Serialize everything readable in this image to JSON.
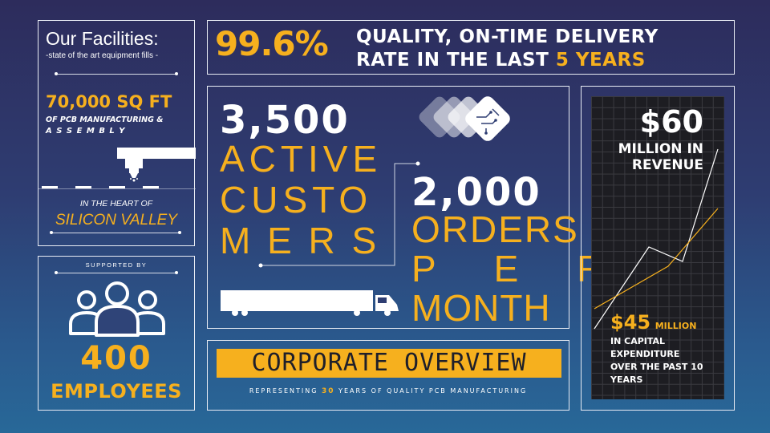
{
  "facilities": {
    "title": "Our Facilities:",
    "subtitle": "-state of the art equipment fills -",
    "area": "70,000 SQ FT",
    "area_desc_1": "OF PCB MANUFACTURING &",
    "area_desc_2": "A S S E M B L Y",
    "location_intro": "IN THE HEART OF",
    "location": "SILICON VALLEY"
  },
  "quality": {
    "percent": "99.6%",
    "line1": "QUALITY, ON-TIME DELIVERY",
    "line2_prefix": "RATE IN THE LAST",
    "line2_highlight": "5 YEARS"
  },
  "customers": {
    "number": "3,500",
    "word1": "ACTIVE",
    "word2": "CUSTO",
    "word3": "M E R S"
  },
  "orders": {
    "number": "2,000",
    "word1": "ORDERS",
    "word2": "P E R",
    "word3": "MONTH"
  },
  "employees": {
    "supported_by": "SUPPORTED BY",
    "count": "400",
    "label": "EMPLOYEES"
  },
  "overview": {
    "title": "CORPORATE OVERVIEW",
    "subtitle_prefix": "REPRESENTING",
    "subtitle_number": "30",
    "subtitle_suffix": "YEARS OF QUALITY PCB MANUFACTURING"
  },
  "revenue": {
    "amount": "$60",
    "line1": "MILLION IN",
    "line2": "REVENUE",
    "capex_amount": "$45",
    "capex_line1": "MILLION",
    "capex_line2": "IN CAPITAL",
    "capex_line3": "EXPENDITURE",
    "capex_line4": "OVER THE PAST 10",
    "capex_line5": "YEARS"
  },
  "colors": {
    "accent": "#f6b01e",
    "background": "#2e3d72",
    "border": "#e8ecf4"
  }
}
